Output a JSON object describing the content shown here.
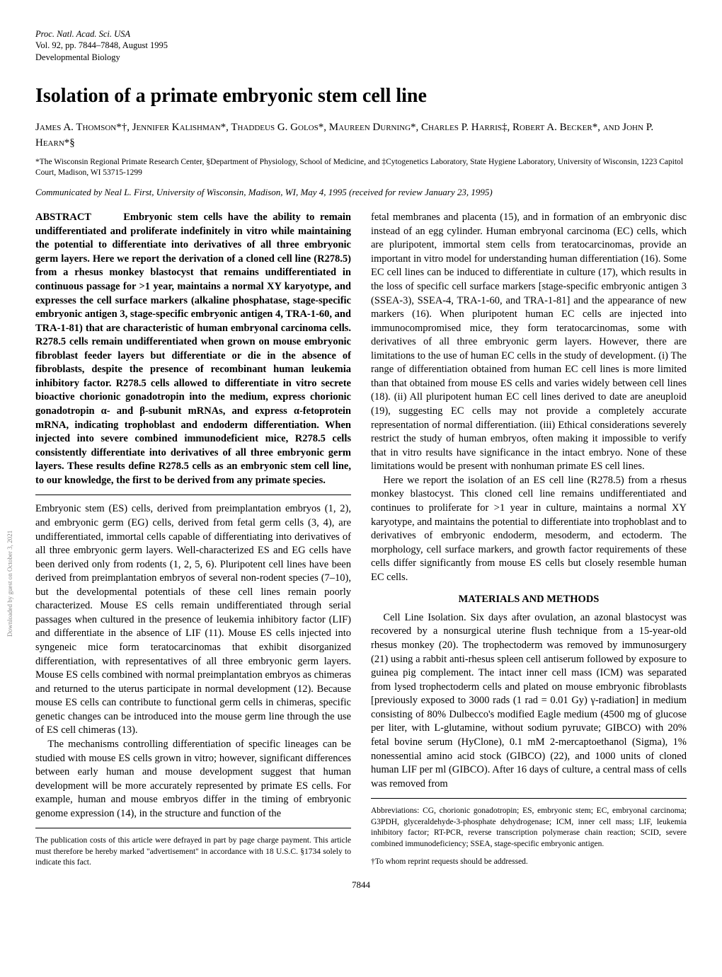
{
  "header": {
    "journal": "Proc. Natl. Acad. Sci. USA",
    "vol": "Vol. 92, pp. 7844–7848, August 1995",
    "section": "Developmental Biology"
  },
  "title": "Isolation of a primate embryonic stem cell line",
  "authors": "James A. Thomson*†, Jennifer Kalishman*, Thaddeus G. Golos*, Maureen Durning*, Charles P. Harris‡, Robert A. Becker*, and John P. Hearn*§",
  "affil": "*The Wisconsin Regional Primate Research Center, §Department of Physiology, School of Medicine, and ‡Cytogenetics Laboratory, State Hygiene Laboratory, University of Wisconsin, 1223 Capitol Court, Madison, WI 53715-1299",
  "communicated": "Communicated by Neal L. First, University of Wisconsin, Madison, WI, May 4, 1995 (received for review January 23, 1995)",
  "left": {
    "abstract_label": "ABSTRACT",
    "abstract": "Embryonic stem cells have the ability to remain undifferentiated and proliferate indefinitely in vitro while maintaining the potential to differentiate into derivatives of all three embryonic germ layers. Here we report the derivation of a cloned cell line (R278.5) from a rhesus monkey blastocyst that remains undifferentiated in continuous passage for >1 year, maintains a normal XY karyotype, and expresses the cell surface markers (alkaline phosphatase, stage-specific embryonic antigen 3, stage-specific embryonic antigen 4, TRA-1-60, and TRA-1-81) that are characteristic of human embryonal carcinoma cells. R278.5 cells remain undifferentiated when grown on mouse embryonic fibroblast feeder layers but differentiate or die in the absence of fibroblasts, despite the presence of recombinant human leukemia inhibitory factor. R278.5 cells allowed to differentiate in vitro secrete bioactive chorionic gonadotropin into the medium, express chorionic gonadotropin α- and β-subunit mRNAs, and express α-fetoprotein mRNA, indicating trophoblast and endoderm differentiation. When injected into severe combined immunodeficient mice, R278.5 cells consistently differentiate into derivatives of all three embryonic germ layers. These results define R278.5 cells as an embryonic stem cell line, to our knowledge, the first to be derived from any primate species.",
    "p1": "Embryonic stem (ES) cells, derived from preimplantation embryos (1, 2), and embryonic germ (EG) cells, derived from fetal germ cells (3, 4), are undifferentiated, immortal cells capable of differentiating into derivatives of all three embryonic germ layers. Well-characterized ES and EG cells have been derived only from rodents (1, 2, 5, 6). Pluripotent cell lines have been derived from preimplantation embryos of several non-rodent species (7–10), but the developmental potentials of these cell lines remain poorly characterized. Mouse ES cells remain undifferentiated through serial passages when cultured in the presence of leukemia inhibitory factor (LIF) and differentiate in the absence of LIF (11). Mouse ES cells injected into syngeneic mice form teratocarcinomas that exhibit disorganized differentiation, with representatives of all three embryonic germ layers. Mouse ES cells combined with normal preimplantation embryos as chimeras and returned to the uterus participate in normal development (12). Because mouse ES cells can contribute to functional germ cells in chimeras, specific genetic changes can be introduced into the mouse germ line through the use of ES cell chimeras (13).",
    "p2": "The mechanisms controlling differentiation of specific lineages can be studied with mouse ES cells grown in vitro; however, significant differences between early human and mouse development suggest that human development will be more accurately represented by primate ES cells. For example, human and mouse embryos differ in the timing of embryonic genome expression (14), in the structure and function of the",
    "pubnote": "The publication costs of this article were defrayed in part by page charge payment. This article must therefore be hereby marked \"advertisement\" in accordance with 18 U.S.C. §1734 solely to indicate this fact."
  },
  "right": {
    "p1": "fetal membranes and placenta (15), and in formation of an embryonic disc instead of an egg cylinder. Human embryonal carcinoma (EC) cells, which are pluripotent, immortal stem cells from teratocarcinomas, provide an important in vitro model for understanding human differentiation (16). Some EC cell lines can be induced to differentiate in culture (17), which results in the loss of specific cell surface markers [stage-specific embryonic antigen 3 (SSEA-3), SSEA-4, TRA-1-60, and TRA-1-81] and the appearance of new markers (16). When pluripotent human EC cells are injected into immunocompromised mice, they form teratocarcinomas, some with derivatives of all three embryonic germ layers. However, there are limitations to the use of human EC cells in the study of development. (i) The range of differentiation obtained from human EC cell lines is more limited than that obtained from mouse ES cells and varies widely between cell lines (18). (ii) All pluripotent human EC cell lines derived to date are aneuploid (19), suggesting EC cells may not provide a completely accurate representation of normal differentiation. (iii) Ethical considerations severely restrict the study of human embryos, often making it impossible to verify that in vitro results have significance in the intact embryo. None of these limitations would be present with nonhuman primate ES cell lines.",
    "p2": "Here we report the isolation of an ES cell line (R278.5) from a rhesus monkey blastocyst. This cloned cell line remains undifferentiated and continues to proliferate for >1 year in culture, maintains a normal XY karyotype, and maintains the potential to differentiate into trophoblast and to derivatives of embryonic endoderm, mesoderm, and ectoderm. The morphology, cell surface markers, and growth factor requirements of these cells differ significantly from mouse ES cells but closely resemble human EC cells.",
    "mm_heading": "MATERIALS AND METHODS",
    "p3": "Cell Line Isolation. Six days after ovulation, an azonal blastocyst was recovered by a nonsurgical uterine flush technique from a 15-year-old rhesus monkey (20). The trophectoderm was removed by immunosurgery (21) using a rabbit anti-rhesus spleen cell antiserum followed by exposure to guinea pig complement. The intact inner cell mass (ICM) was separated from lysed trophectoderm cells and plated on mouse embryonic fibroblasts [previously exposed to 3000 rads (1 rad = 0.01 Gy) γ-radiation] in medium consisting of 80% Dulbecco's modified Eagle medium (4500 mg of glucose per liter, with L-glutamine, without sodium pyruvate; GIBCO) with 20% fetal bovine serum (HyClone), 0.1 mM 2-mercaptoethanol (Sigma), 1% nonessential amino acid stock (GIBCO) (22), and 1000 units of cloned human LIF per ml (GIBCO). After 16 days of culture, a central mass of cells was removed from",
    "abbrev": "Abbreviations: CG, chorionic gonadotropin; ES, embryonic stem; EC, embryonal carcinoma; G3PDH, glyceraldehyde-3-phosphate dehydrogenase; ICM, inner cell mass; LIF, leukemia inhibitory factor; RT-PCR, reverse transcription polymerase chain reaction; SCID, severe combined immunodeficiency; SSEA, stage-specific embryonic antigen.",
    "corr": "†To whom reprint requests should be addressed."
  },
  "pageno": "7844",
  "sidetext": "Downloaded by guest on October 3, 2021"
}
